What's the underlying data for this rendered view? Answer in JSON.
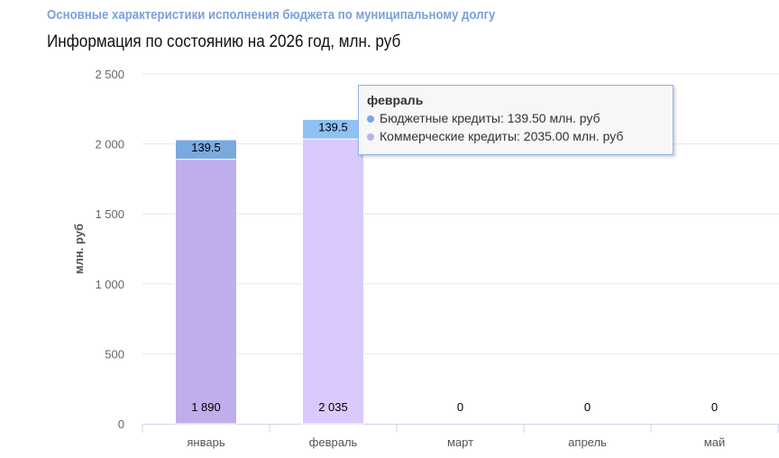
{
  "title": "Основные характеристики исполнения бюджета по муниципальному долгу",
  "subtitle": "Информация по состоянию на 2026 год, млн. руб",
  "chart_data": {
    "type": "bar",
    "stacked": true,
    "categories": [
      "январь",
      "февраль",
      "март",
      "апрель",
      "май"
    ],
    "series": [
      {
        "name": "Коммерческие кредиты",
        "values": [
          1890,
          2035,
          0,
          0,
          0
        ],
        "labels": [
          "1 890",
          "2 035",
          "0",
          "0",
          "0"
        ],
        "color": "#c0aeea",
        "hover_color": "#d9c9fd"
      },
      {
        "name": "Бюджетные кредиты",
        "values": [
          139.5,
          139.5,
          0,
          0,
          0
        ],
        "labels": [
          "139.5",
          "139.5",
          "",
          "",
          ""
        ],
        "color": "#7aa9e0",
        "hover_color": "#8fc1f6"
      }
    ],
    "ylabel": "млн. руб",
    "ylim": [
      0,
      2500
    ],
    "yticks": [
      0,
      500,
      1000,
      1500,
      2000,
      2500
    ],
    "ytick_labels": [
      "0",
      "500",
      "1 000",
      "1 500",
      "2 000",
      "2 500"
    ],
    "grid": true,
    "hovered_index": 1
  },
  "tooltip": {
    "title": "февраль",
    "rows": [
      "Бюджетные кредиты: 139.50 млн. руб",
      "Коммерческие кредиты: 2035.00 млн. руб"
    ],
    "colors": [
      "#7aa9e0",
      "#c0aeea"
    ]
  }
}
